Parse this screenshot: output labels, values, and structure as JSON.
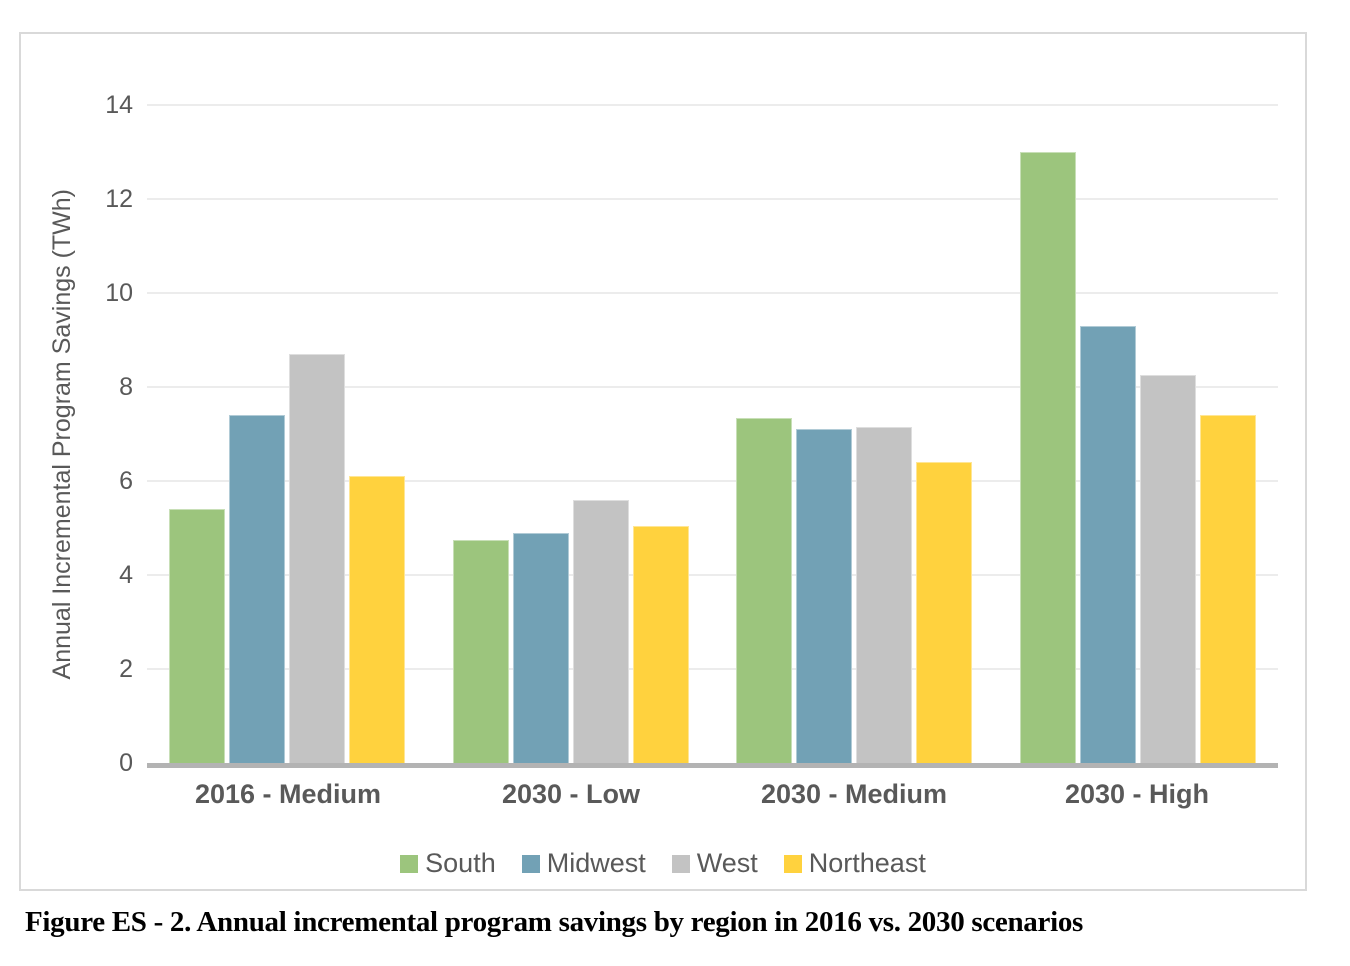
{
  "figure_caption": "Figure ES - 2. Annual incremental program savings by region in 2016 vs. 2030 scenarios",
  "chart_data": {
    "type": "bar",
    "title": "",
    "xlabel": "",
    "ylabel": "Annual Incremental Program Savings (TWh)",
    "ylim": [
      0,
      14
    ],
    "yticks": [
      0,
      2,
      4,
      6,
      8,
      10,
      12,
      14
    ],
    "grid": true,
    "legend_position": "bottom",
    "categories": [
      "2016 - Medium",
      "2030 - Low",
      "2030 - Medium",
      "2030 - High"
    ],
    "series": [
      {
        "name": "South",
        "color": "#9CC57D",
        "values": [
          5.4,
          4.75,
          7.35,
          13.0
        ]
      },
      {
        "name": "Midwest",
        "color": "#72A1B5",
        "values": [
          7.4,
          4.9,
          7.1,
          9.3
        ]
      },
      {
        "name": "West",
        "color": "#C3C3C3",
        "values": [
          8.7,
          5.6,
          7.15,
          8.25
        ]
      },
      {
        "name": "Northeast",
        "color": "#FFD23E",
        "values": [
          6.1,
          5.05,
          6.4,
          7.4
        ]
      }
    ]
  },
  "colors": {
    "gridline": "#ECECEC",
    "baseline": "#B3B3B3",
    "axis_text": "#595959",
    "frame_border": "#D9D9D9",
    "caption_text": "#000000"
  }
}
